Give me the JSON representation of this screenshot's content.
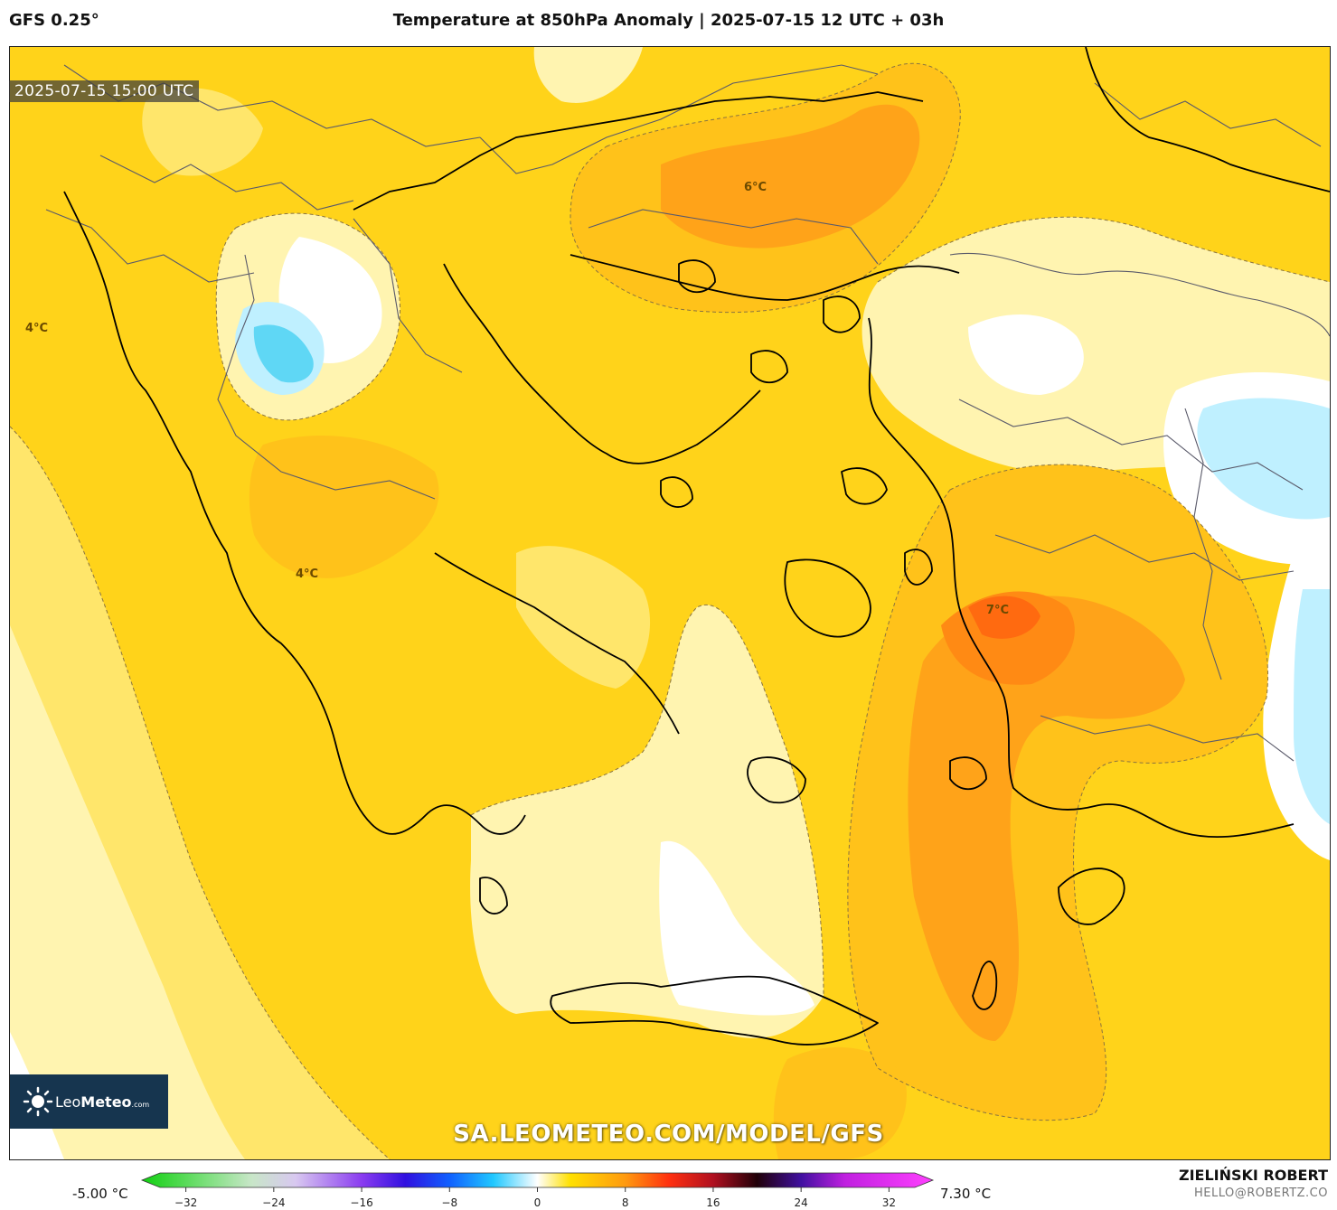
{
  "header": {
    "model": "GFS 0.25°",
    "title": "Temperature at 850hPa Anomaly | 2025-07-15 12 UTC + 03h"
  },
  "map": {
    "valid_time": "2025-07-15 15:00 UTC",
    "contour_labels": [
      "6°C",
      "4°C",
      "4°C",
      "7°C"
    ],
    "watermark": "SA.LEOMETEO.COM/MODEL/GFS",
    "logo": {
      "brand_light": "Leo",
      "brand_bold": "Meteo",
      "brand_suffix": ".com"
    },
    "colors": {
      "base": "#ffd31a",
      "light": "#ffe66b",
      "pale": "#fff4b0",
      "warm": "#ffc21a",
      "orange": "#ffa319",
      "deep_orange": "#ff8a14",
      "hot": "#ff6a10",
      "cold_light": "#bff0ff",
      "cold": "#5fd7f5"
    }
  },
  "colorbar": {
    "min_label": "-5.00 °C",
    "max_label": "7.30 °C",
    "ticks": [
      "-32",
      "-24",
      "-16",
      "-8",
      "0",
      "8",
      "16",
      "24",
      "32"
    ],
    "range": [
      -36,
      36
    ],
    "stops": [
      {
        "v": -36,
        "c": "#10d010"
      },
      {
        "v": -30,
        "c": "#7ee07e"
      },
      {
        "v": -26,
        "c": "#c8e6c8"
      },
      {
        "v": -22,
        "c": "#d8c8f0"
      },
      {
        "v": -16,
        "c": "#8a3cf0"
      },
      {
        "v": -12,
        "c": "#3010e0"
      },
      {
        "v": -8,
        "c": "#1060ff"
      },
      {
        "v": -4,
        "c": "#20c8ff"
      },
      {
        "v": 0,
        "c": "#ffffff"
      },
      {
        "v": 3,
        "c": "#ffe000"
      },
      {
        "v": 8,
        "c": "#ff9a10"
      },
      {
        "v": 12,
        "c": "#ff3010"
      },
      {
        "v": 16,
        "c": "#b01020"
      },
      {
        "v": 20,
        "c": "#200008"
      },
      {
        "v": 24,
        "c": "#4010a0"
      },
      {
        "v": 28,
        "c": "#c020e0"
      },
      {
        "v": 36,
        "c": "#ff40ff"
      }
    ]
  },
  "credits": {
    "author": "ZIELIŃSKI ROBERT",
    "email": "HELLO@ROBERTZ.CO"
  }
}
